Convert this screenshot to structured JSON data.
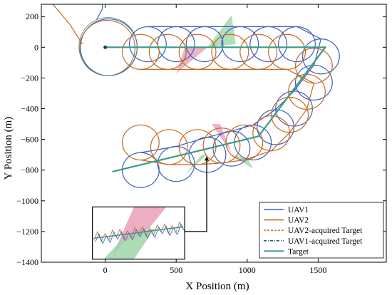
{
  "chart_data": {
    "type": "line",
    "title": "",
    "xlabel": "X Position (m)",
    "ylabel": "Y Position (m)",
    "xlim": [
      -450,
      1980
    ],
    "ylim": [
      -1400,
      280
    ],
    "xticks": [
      0,
      500,
      1000,
      1500
    ],
    "yticks": [
      200,
      0,
      -200,
      -400,
      -600,
      -800,
      -1000,
      -1200,
      -1400
    ],
    "xtick_labels": [
      "0",
      "500",
      "1000",
      "1500"
    ],
    "ytick_labels": [
      "200",
      "0",
      "−200",
      "−400",
      "−600",
      "−800",
      "−1000",
      "−1200",
      "−1400"
    ],
    "grid": false,
    "legend_position": "bottom-right",
    "colors": {
      "uav1": "#3b5fc0",
      "uav2": "#c46a1f",
      "target": "#3a9a8a",
      "target_marker": "#1a3a6a",
      "sector_red": "#e8a0b8",
      "sector_green": "#9fd6a9"
    },
    "series": [
      {
        "name": "UAV1",
        "style": "solid"
      },
      {
        "name": "UAV2",
        "style": "solid"
      },
      {
        "name": "UAV2-acquired Target",
        "style": "dashed"
      },
      {
        "name": "UAV1-acquired Target",
        "style": "dashdot"
      },
      {
        "name": "Target",
        "style": "solid"
      }
    ],
    "target_path": [
      [
        0,
        0
      ],
      [
        1550,
        0
      ],
      [
        1080,
        -580
      ],
      [
        50,
        -810
      ]
    ],
    "loiter_center": [
      20,
      0
    ],
    "loiter_radius": 200,
    "orbit_radius": 130,
    "uav1_orbits": [
      [
        300,
        20
      ],
      [
        500,
        20
      ],
      [
        700,
        20
      ],
      [
        950,
        20
      ],
      [
        1150,
        20
      ],
      [
        1350,
        20
      ],
      [
        1520,
        -60
      ],
      [
        1470,
        -230
      ],
      [
        1330,
        -400
      ],
      [
        1200,
        -520
      ],
      [
        1040,
        -620
      ],
      [
        890,
        -660
      ],
      [
        720,
        -700
      ],
      [
        500,
        -760
      ],
      [
        250,
        -800
      ]
    ],
    "uav2_orbits": [
      [
        250,
        -30
      ],
      [
        440,
        -30
      ],
      [
        650,
        -30
      ],
      [
        880,
        -30
      ],
      [
        1080,
        -30
      ],
      [
        1280,
        -30
      ],
      [
        1470,
        -120
      ],
      [
        1420,
        -290
      ],
      [
        1300,
        -440
      ],
      [
        1170,
        -560
      ],
      [
        980,
        -620
      ],
      [
        820,
        -640
      ],
      [
        650,
        -650
      ],
      [
        450,
        -650
      ],
      [
        250,
        -620
      ]
    ],
    "uav1_start_path": [
      [
        -20,
        370
      ],
      [
        -20,
        250
      ],
      [
        -60,
        180
      ]
    ],
    "uav2_start_path": [
      [
        -450,
        370
      ],
      [
        -250,
        150
      ],
      [
        -160,
        20
      ]
    ],
    "sectors": [
      {
        "color": "red",
        "points": [
          [
            560,
            0
          ],
          [
            720,
            0
          ],
          [
            500,
            -170
          ]
        ]
      },
      {
        "color": "green",
        "points": [
          [
            720,
            0
          ],
          [
            890,
            210
          ],
          [
            920,
            20
          ]
        ]
      },
      {
        "color": "red",
        "points": [
          [
            750,
            -500
          ],
          [
            810,
            -500
          ],
          [
            890,
            -690
          ]
        ]
      },
      {
        "color": "green",
        "points": [
          [
            560,
            -830
          ],
          [
            720,
            -700
          ],
          [
            680,
            -700
          ]
        ]
      },
      {
        "color": "green",
        "points": [
          [
            880,
            -700
          ],
          [
            1040,
            -790
          ],
          [
            1000,
            -720
          ]
        ]
      }
    ],
    "inset": {
      "box_data": [
        -90,
        560,
        -1380,
        -1040
      ],
      "arrow_from": [
        560,
        -1200
      ],
      "arrow_to": [
        715,
        -710
      ]
    }
  }
}
